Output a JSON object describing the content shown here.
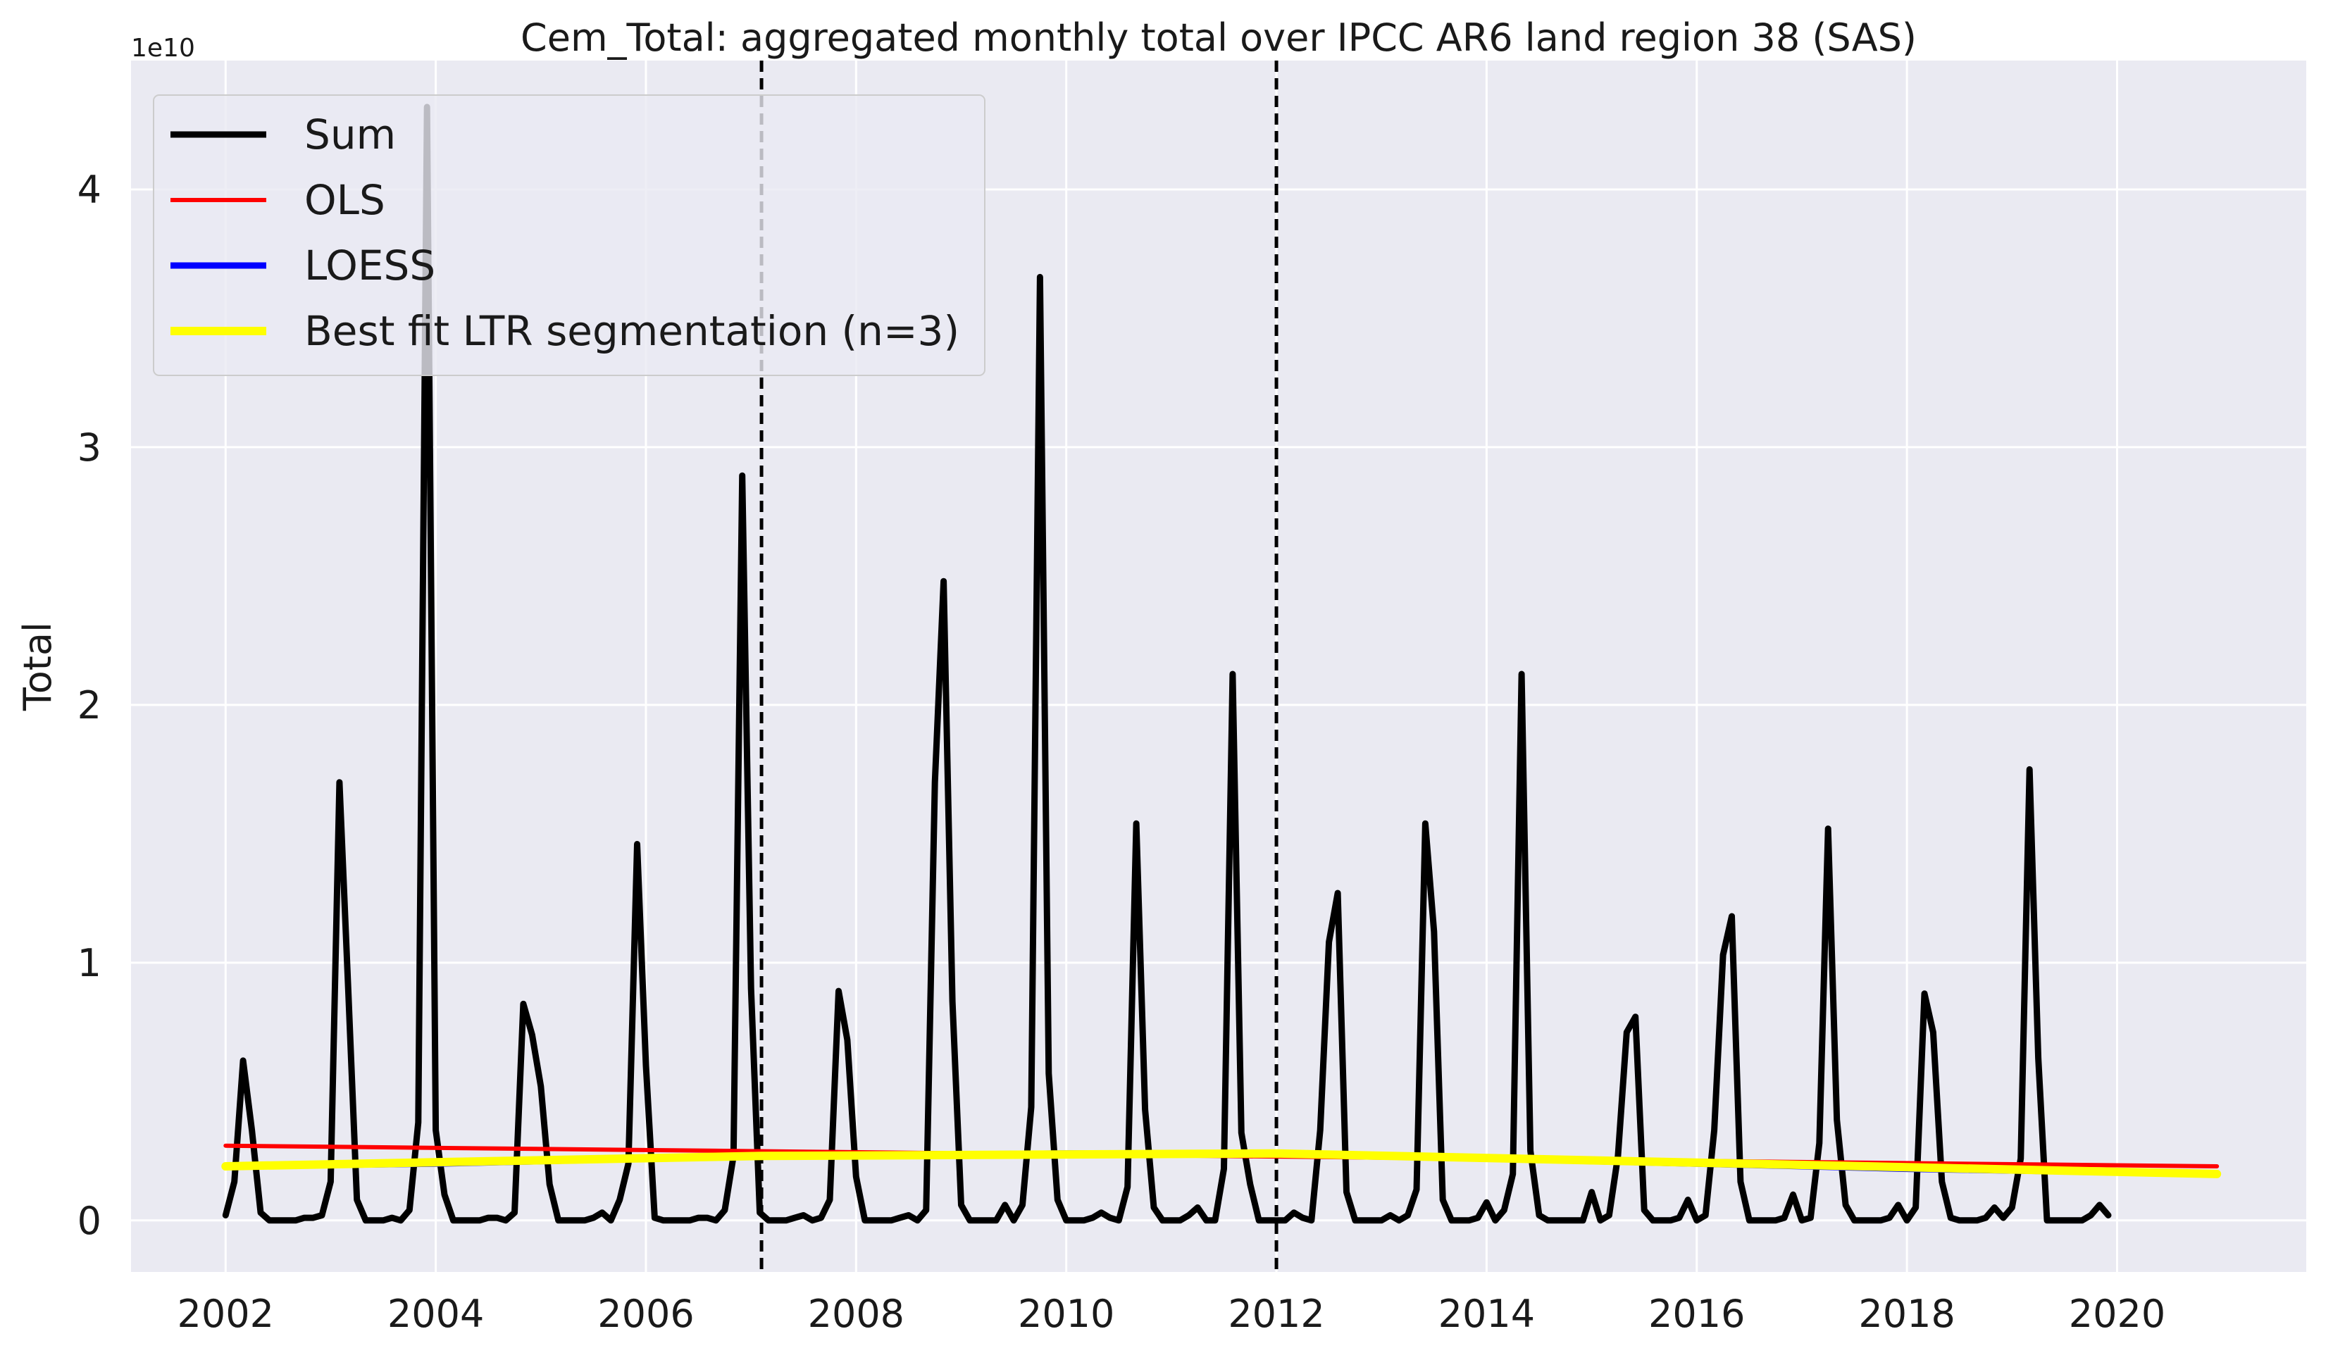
{
  "chart_data": {
    "type": "line",
    "title": "Cem_Total: aggregated monthly total over IPCC AR6 land region 38 (SAS)",
    "xlabel": "",
    "ylabel": "Total",
    "y_offset_label": "1e10",
    "y_scale": 10000000000,
    "xlim": [
      2001.1,
      2021.8
    ],
    "ylim": [
      -0.2,
      4.5
    ],
    "x_ticks": [
      2002,
      2004,
      2006,
      2008,
      2010,
      2012,
      2014,
      2016,
      2018,
      2020
    ],
    "x_tick_labels": [
      "2002",
      "2004",
      "2006",
      "2008",
      "2010",
      "2012",
      "2014",
      "2016",
      "2018",
      "2020"
    ],
    "y_ticks": [
      0,
      1,
      2,
      3,
      4
    ],
    "y_tick_labels": [
      "0",
      "1",
      "2",
      "3",
      "4"
    ],
    "grid": true,
    "legend_position": "top-left",
    "breakpoints": [
      2007.1,
      2012.0
    ],
    "series": [
      {
        "name": "Sum",
        "color": "#000000",
        "x_start": 2002.0,
        "x_step": 0.0833333,
        "values": [
          0.02,
          0.15,
          0.62,
          0.35,
          0.03,
          0.0,
          0.0,
          0.0,
          0.0,
          0.01,
          0.01,
          0.02,
          0.15,
          1.7,
          0.9,
          0.08,
          0.0,
          0.0,
          0.0,
          0.01,
          0.0,
          0.04,
          0.38,
          4.32,
          0.35,
          0.1,
          0.0,
          0.0,
          0.0,
          0.0,
          0.01,
          0.01,
          0.0,
          0.03,
          0.84,
          0.72,
          0.52,
          0.14,
          0.0,
          0.0,
          0.0,
          0.0,
          0.01,
          0.03,
          0.0,
          0.08,
          0.22,
          1.46,
          0.6,
          0.01,
          0.0,
          0.0,
          0.0,
          0.0,
          0.01,
          0.01,
          0.0,
          0.04,
          0.25,
          2.89,
          0.9,
          0.03,
          0.0,
          0.0,
          0.0,
          0.01,
          0.02,
          0.0,
          0.01,
          0.08,
          0.89,
          0.7,
          0.17,
          0.0,
          0.0,
          0.0,
          0.0,
          0.01,
          0.02,
          0.0,
          0.04,
          1.7,
          2.48,
          0.85,
          0.06,
          0.0,
          0.0,
          0.0,
          0.0,
          0.06,
          0.0,
          0.06,
          0.44,
          3.66,
          0.57,
          0.08,
          0.0,
          0.0,
          0.0,
          0.01,
          0.03,
          0.01,
          0.0,
          0.13,
          1.54,
          0.43,
          0.05,
          0.0,
          0.0,
          0.0,
          0.02,
          0.05,
          0.0,
          0.0,
          0.2,
          2.12,
          0.34,
          0.14,
          0.0,
          0.0,
          0.0,
          0.0,
          0.03,
          0.01,
          0.0,
          0.35,
          1.08,
          1.27,
          0.11,
          0.0,
          0.0,
          0.0,
          0.0,
          0.02,
          0.0,
          0.02,
          0.12,
          1.54,
          1.12,
          0.08,
          0.0,
          0.0,
          0.0,
          0.01,
          0.07,
          0.0,
          0.04,
          0.18,
          2.12,
          0.27,
          0.02,
          0.0,
          0.0,
          0.0,
          0.0,
          0.0,
          0.11,
          0.0,
          0.02,
          0.25,
          0.73,
          0.79,
          0.04,
          0.0,
          0.0,
          0.0,
          0.01,
          0.08,
          0.0,
          0.02,
          0.35,
          1.03,
          1.18,
          0.15,
          0.0,
          0.0,
          0.0,
          0.0,
          0.01,
          0.1,
          0.0,
          0.01,
          0.3,
          1.52,
          0.39,
          0.06,
          0.0,
          0.0,
          0.0,
          0.0,
          0.01,
          0.06,
          0.0,
          0.05,
          0.88,
          0.73,
          0.15,
          0.01,
          0.0,
          0.0,
          0.0,
          0.01,
          0.05,
          0.01,
          0.05,
          0.24,
          1.75,
          0.63,
          0.0,
          0.0,
          0.0,
          0.0,
          0.0,
          0.02,
          0.06,
          0.02
        ]
      },
      {
        "name": "OLS",
        "color": "#ff0000",
        "x": [
          2002.0,
          2020.95
        ],
        "values": [
          0.29,
          0.21
        ]
      },
      {
        "name": "LOESS",
        "color": "#0000ff",
        "x": [
          2002.0,
          2004.0,
          2007.1,
          2010.0,
          2012.0,
          2014.0,
          2016.0,
          2018.0,
          2020.95
        ],
        "values": [
          0.21,
          0.22,
          0.25,
          0.26,
          0.26,
          0.24,
          0.22,
          0.2,
          0.18
        ]
      },
      {
        "name": "Best fit LTR segmentation (n=3)",
        "color": "#ffff00",
        "x": [
          2002.0,
          2007.1,
          2012.0,
          2020.95
        ],
        "values": [
          0.21,
          0.25,
          0.26,
          0.18
        ]
      }
    ]
  }
}
